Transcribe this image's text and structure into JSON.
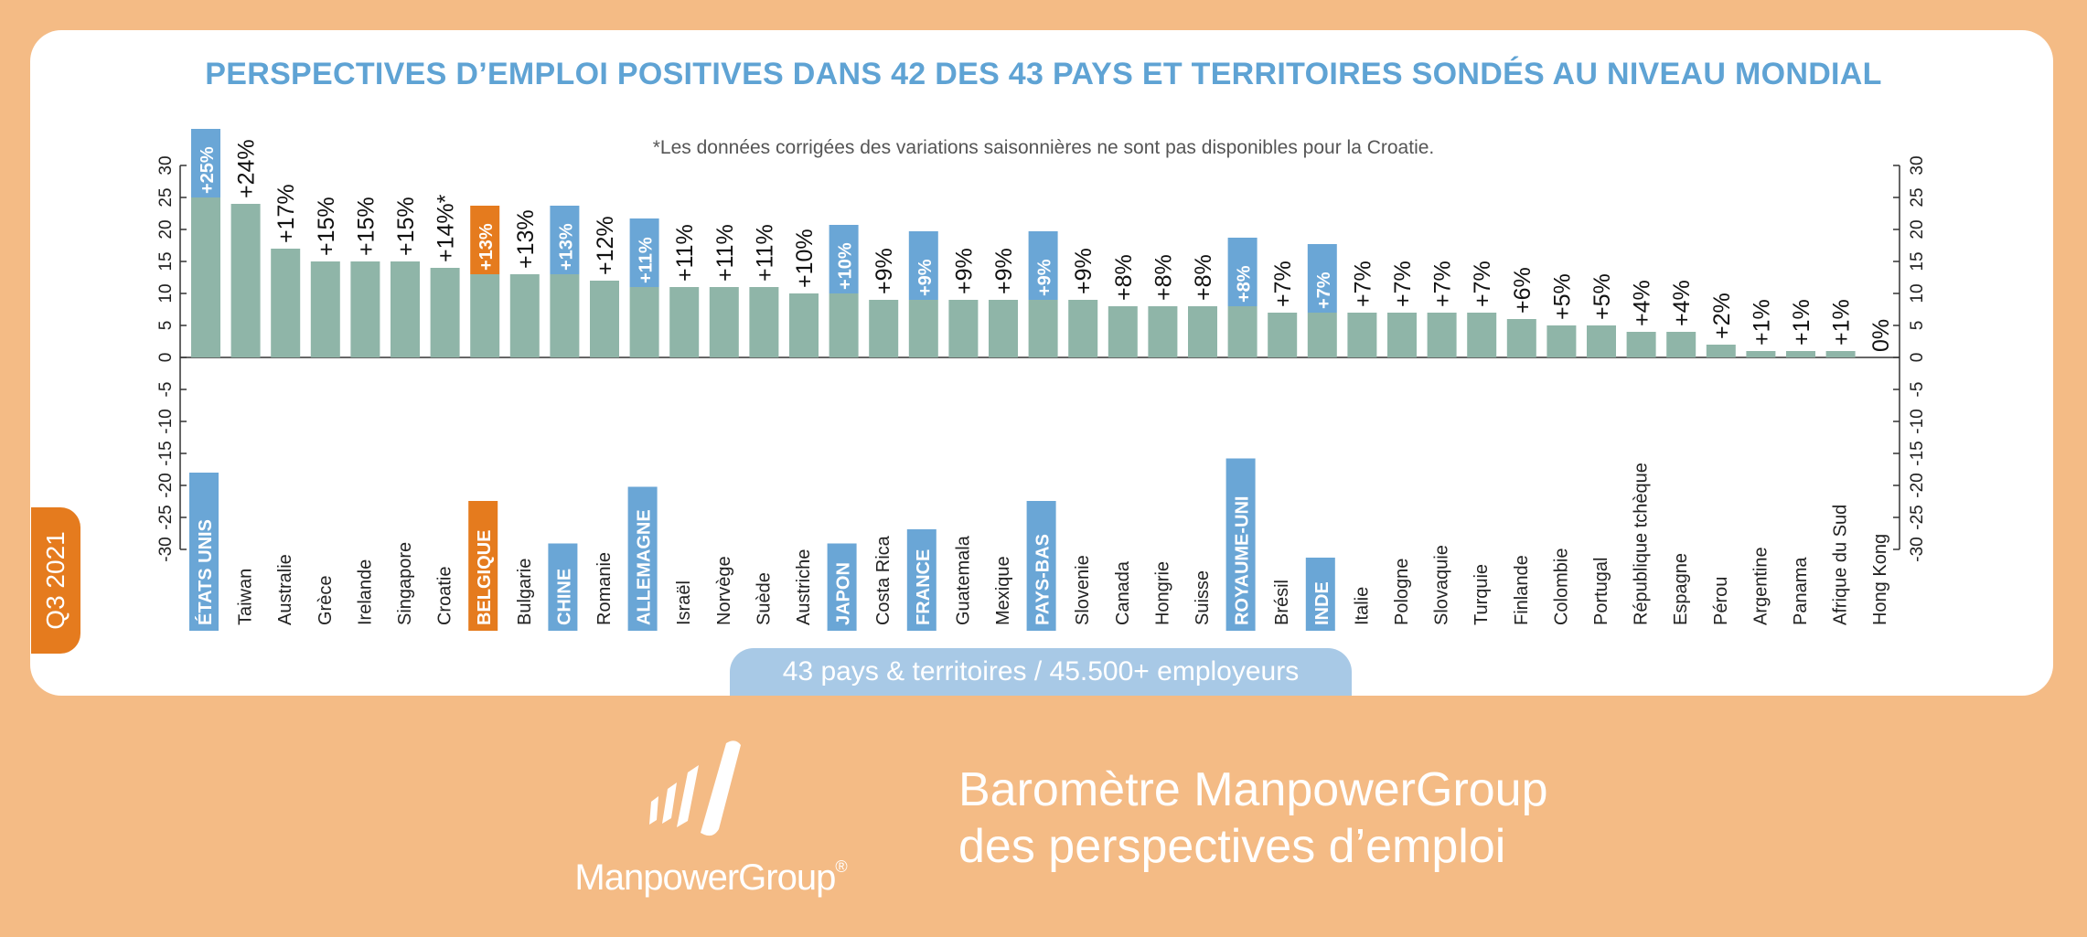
{
  "header": {
    "title": "PERSPECTIVES D’EMPLOI POSITIVES DANS 42 DES 43 PAYS ET TERRITOIRES SONDÉS AU NIVEAU MONDIAL",
    "note": "*Les données corrigées des variations saisonnières ne sont pas disponibles pour la Croatie."
  },
  "quarter": "Q3 2021",
  "footer_pill": "43 pays & territoires / 45.500+ employeurs",
  "brand": {
    "logo_text": "ManpowerGroup",
    "registered_mark": "®",
    "line1": "Baromètre ManpowerGroup",
    "line2": "des perspectives d’emploi"
  },
  "colors": {
    "bar": "#8fb5a8",
    "highlight_blue": "#6aa6d6",
    "highlight_orange": "#e57b1e",
    "title": "#5fa3d4",
    "background": "#f4bb85"
  },
  "chart_data": {
    "type": "bar",
    "categories": [
      "ÉTATS UNIS",
      "Taiwan",
      "Australie",
      "Grèce",
      "Irelande",
      "Singapore",
      "Croatie",
      "BELGIQUE",
      "Bulgarie",
      "CHINE",
      "Romanie",
      "ALLEMAGNE",
      "Israël",
      "Norvège",
      "Suède",
      "Austriche",
      "JAPON",
      "Costa Rica",
      "FRANCE",
      "Guatemala",
      "Mexique",
      "PAYS-BAS",
      "Slovenie",
      "Canada",
      "Hongrie",
      "Suisse",
      "ROYAUME-UNI",
      "Brésil",
      "INDE",
      "Italie",
      "Pologne",
      "Slovaquie",
      "Turquie",
      "Finlande",
      "Colombie",
      "Portugal",
      "République tchèque",
      "Espagne",
      "Pérou",
      "Argentine",
      "Panama",
      "Afrique du Sud",
      "Hong Kong"
    ],
    "values": [
      25,
      24,
      17,
      15,
      15,
      15,
      14,
      13,
      13,
      13,
      12,
      11,
      11,
      11,
      11,
      10,
      10,
      9,
      9,
      9,
      9,
      9,
      9,
      8,
      8,
      8,
      8,
      7,
      7,
      7,
      7,
      7,
      7,
      6,
      5,
      5,
      4,
      4,
      2,
      1,
      1,
      1,
      0
    ],
    "labels": [
      "+25%",
      "+24%",
      "+17%",
      "+15%",
      "+15%",
      "+15%",
      "+14%*",
      "+13%",
      "+13%",
      "+13%",
      "+12%",
      "+11%",
      "+11%",
      "+11%",
      "+11%",
      "+10%",
      "+10%",
      "+9%",
      "+9%",
      "+9%",
      "+9%",
      "+9%",
      "+9%",
      "+8%",
      "+8%",
      "+8%",
      "+8%",
      "+7%",
      "+7%",
      "+7%",
      "+7%",
      "+7%",
      "+7%",
      "+6%",
      "+5%",
      "+5%",
      "+4%",
      "+4%",
      "+2%",
      "+1%",
      "+1%",
      "+1%",
      "0%"
    ],
    "highlight": [
      "blue",
      "",
      "",
      "",
      "",
      "",
      "",
      "orange",
      "",
      "blue",
      "",
      "blue",
      "",
      "",
      "",
      "",
      "blue",
      "",
      "blue",
      "",
      "",
      "blue",
      "",
      "",
      "",
      "",
      "blue",
      "",
      "blue",
      "",
      "",
      "",
      "",
      "",
      "",
      "",
      "",
      "",
      "",
      "",
      "",
      "",
      ""
    ],
    "ylim": [
      -30,
      30
    ],
    "yticks": [
      "-30",
      "-25",
      "-20",
      "-15",
      "-10",
      "-5",
      "0",
      "5",
      "10",
      "15",
      "20",
      "25",
      "30"
    ],
    "grid": false
  }
}
